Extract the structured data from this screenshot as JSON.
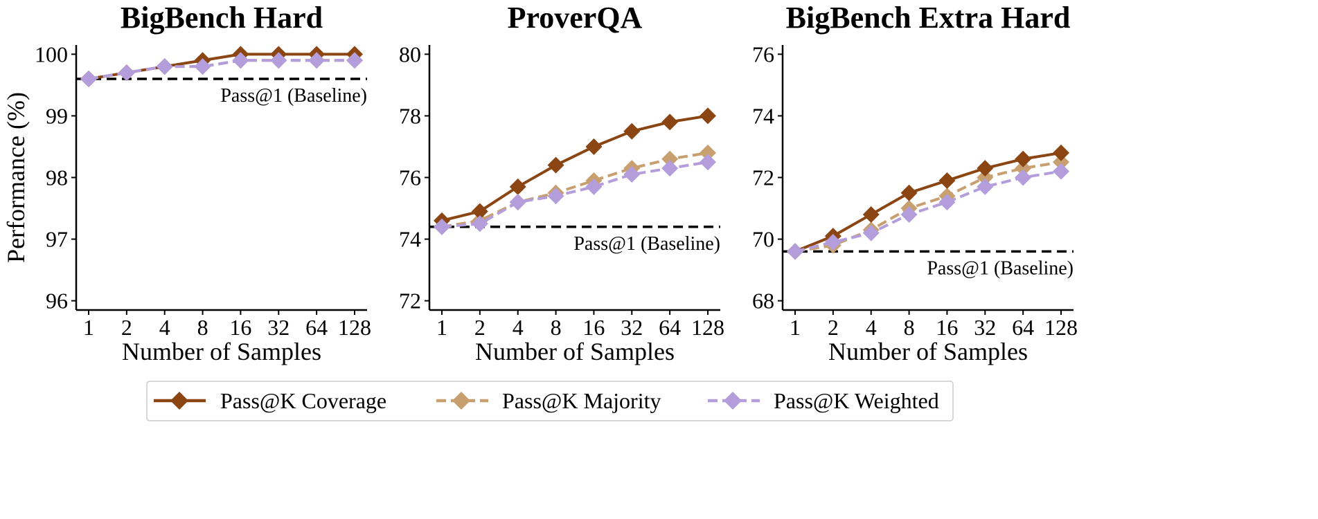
{
  "chart_data": [
    {
      "type": "line",
      "title": "BigBench Hard",
      "xlabel": "Number of Samples",
      "ylabel": "Performance (%)",
      "categories": [
        "1",
        "2",
        "4",
        "8",
        "16",
        "32",
        "64",
        "128"
      ],
      "ylim": [
        95.85,
        100.15
      ],
      "yticks": [
        96,
        97,
        98,
        99,
        100
      ],
      "baseline": {
        "value": 99.6,
        "label": "Pass@1 (Baseline)"
      },
      "series": [
        {
          "name": "Pass@K Coverage",
          "values": [
            99.6,
            99.7,
            99.8,
            99.9,
            100.0,
            100.0,
            100.0,
            100.0
          ]
        },
        {
          "name": "Pass@K Majority",
          "values": [
            99.6,
            99.7,
            99.8,
            99.8,
            99.9,
            99.9,
            99.9,
            99.9
          ]
        },
        {
          "name": "Pass@K Weighted",
          "values": [
            99.6,
            99.7,
            99.8,
            99.8,
            99.9,
            99.9,
            99.9,
            99.9
          ]
        }
      ]
    },
    {
      "type": "line",
      "title": "ProverQA",
      "xlabel": "Number of Samples",
      "ylabel": "",
      "categories": [
        "1",
        "2",
        "4",
        "8",
        "16",
        "32",
        "64",
        "128"
      ],
      "ylim": [
        71.7,
        80.3
      ],
      "yticks": [
        72,
        74,
        76,
        78,
        80
      ],
      "baseline": {
        "value": 74.4,
        "label": "Pass@1 (Baseline)"
      },
      "series": [
        {
          "name": "Pass@K Coverage",
          "values": [
            74.6,
            74.9,
            75.7,
            76.4,
            77.0,
            77.5,
            77.8,
            78.0
          ]
        },
        {
          "name": "Pass@K Majority",
          "values": [
            74.4,
            74.6,
            75.2,
            75.5,
            75.9,
            76.3,
            76.6,
            76.8
          ]
        },
        {
          "name": "Pass@K Weighted",
          "values": [
            74.4,
            74.5,
            75.2,
            75.4,
            75.7,
            76.1,
            76.3,
            76.5
          ]
        }
      ]
    },
    {
      "type": "line",
      "title": "BigBench Extra Hard",
      "xlabel": "Number of Samples",
      "ylabel": "",
      "categories": [
        "1",
        "2",
        "4",
        "8",
        "16",
        "32",
        "64",
        "128"
      ],
      "ylim": [
        67.7,
        76.3
      ],
      "yticks": [
        68,
        70,
        72,
        74,
        76
      ],
      "baseline": {
        "value": 69.6,
        "label": "Pass@1 (Baseline)"
      },
      "series": [
        {
          "name": "Pass@K Coverage",
          "values": [
            69.6,
            70.1,
            70.8,
            71.5,
            71.9,
            72.3,
            72.6,
            72.8
          ]
        },
        {
          "name": "Pass@K Majority",
          "values": [
            69.6,
            69.8,
            70.3,
            71.0,
            71.4,
            72.0,
            72.3,
            72.5
          ]
        },
        {
          "name": "Pass@K Weighted",
          "values": [
            69.6,
            69.9,
            70.2,
            70.8,
            71.2,
            71.7,
            72.0,
            72.2
          ]
        }
      ]
    }
  ],
  "legend": {
    "position": "bottom-center",
    "items": [
      {
        "label": "Pass@K Coverage",
        "color": "#8B4513",
        "dash": "solid"
      },
      {
        "label": "Pass@K Majority",
        "color": "#C8A070",
        "dash": "dashed"
      },
      {
        "label": "Pass@K Weighted",
        "color": "#B39DDB",
        "dash": "dashed"
      }
    ]
  },
  "colors": {
    "coverage": "#8B4513",
    "majority": "#C8A070",
    "weighted": "#B39DDB",
    "baseline": "#000000",
    "legend_border": "#cccccc"
  }
}
